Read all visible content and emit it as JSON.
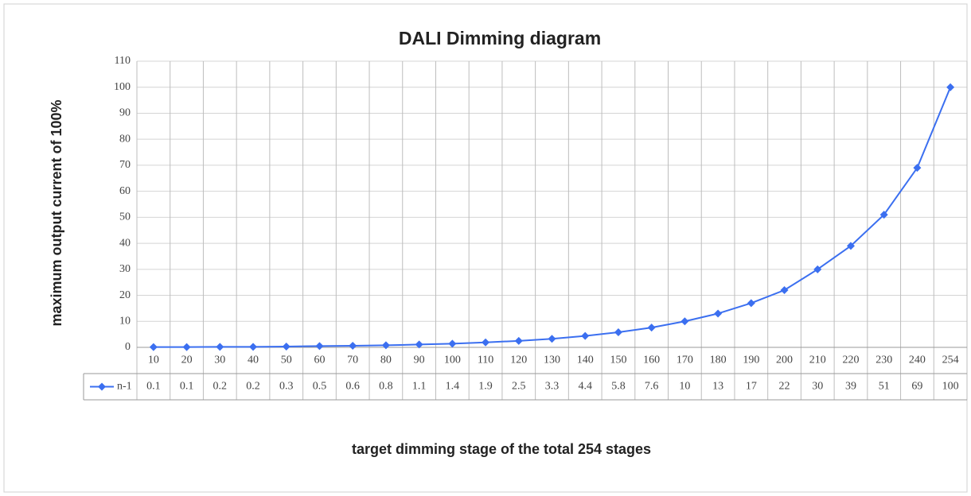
{
  "chart_data": {
    "type": "line",
    "title": "DALI Dimming diagram",
    "y_label": "maximum output current of 100%",
    "x_label": "target dimming stage of the total 254 stages",
    "categories": [
      "10",
      "20",
      "30",
      "40",
      "50",
      "60",
      "70",
      "80",
      "90",
      "100",
      "110",
      "120",
      "130",
      "140",
      "150",
      "160",
      "170",
      "180",
      "190",
      "200",
      "210",
      "220",
      "230",
      "240",
      "254"
    ],
    "series": [
      {
        "name": "n-1",
        "color": "#3b6ff0",
        "values": [
          0.1,
          0.1,
          0.2,
          0.2,
          0.3,
          0.5,
          0.6,
          0.8,
          1.1,
          1.4,
          1.9,
          2.5,
          3.3,
          4.4,
          5.8,
          7.6,
          10,
          13,
          17,
          22,
          30,
          39,
          51,
          69,
          100
        ]
      }
    ],
    "ylim": [
      0,
      110
    ],
    "yticks": [
      0,
      10,
      20,
      30,
      40,
      50,
      60,
      70,
      80,
      90,
      100,
      110
    ],
    "grid": true
  }
}
